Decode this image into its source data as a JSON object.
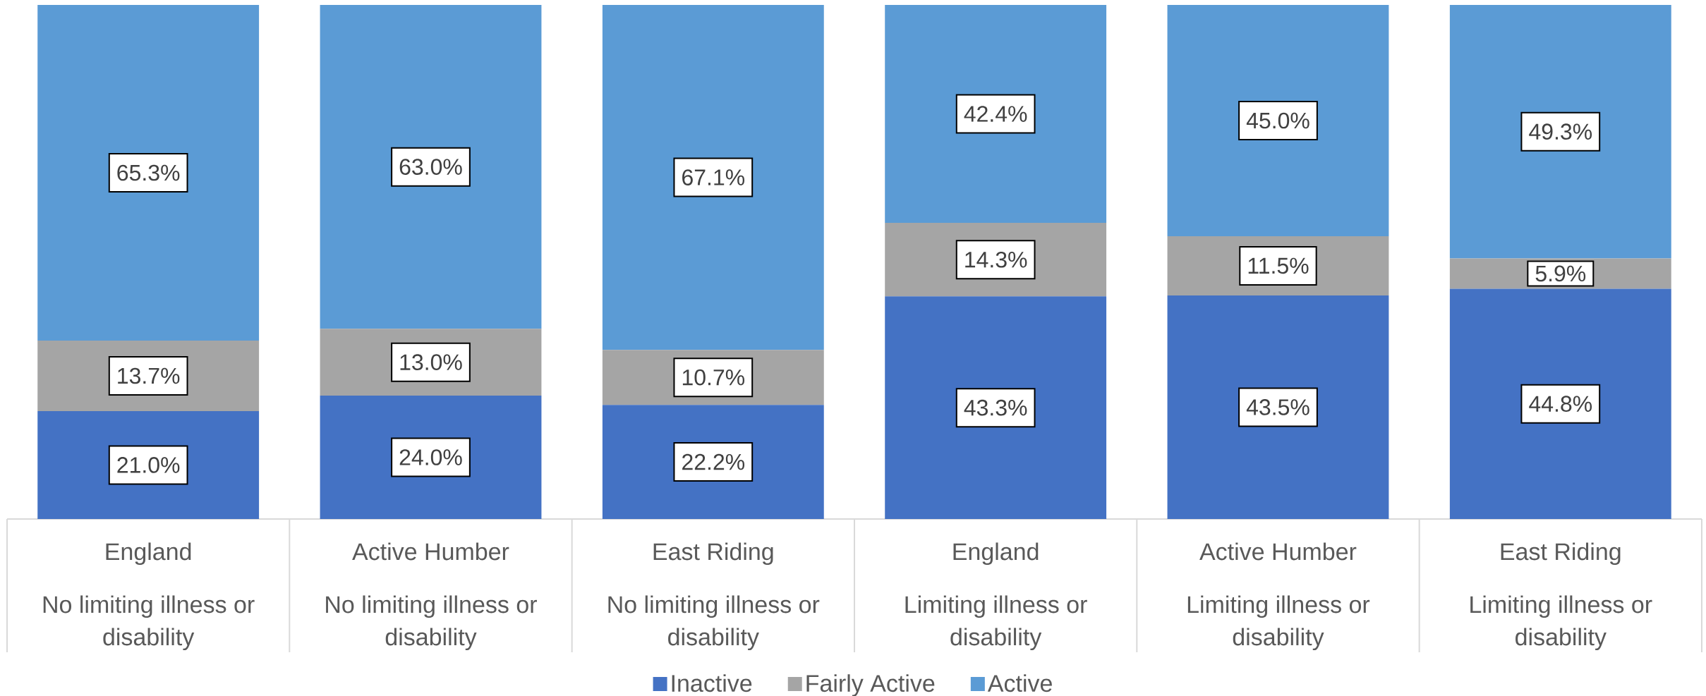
{
  "chart_data": {
    "type": "bar",
    "stacked": true,
    "categories": [
      "England",
      "Active Humber",
      "East Riding",
      "England",
      "Active Humber",
      "East Riding"
    ],
    "annotations": [
      "No limiting illness or disability",
      "No limiting illness or disability",
      "No limiting illness or disability",
      "Limiting illness or disability",
      "Limiting illness or disability",
      "Limiting illness or disability"
    ],
    "series": [
      {
        "name": "Inactive",
        "color": "#4472c4",
        "values": [
          21.0,
          24.0,
          22.2,
          43.3,
          43.5,
          44.8
        ],
        "value_labels": [
          "21.0%",
          "24.0%",
          "22.2%",
          "43.3%",
          "43.5%",
          "44.8%"
        ]
      },
      {
        "name": "Fairly Active",
        "color": "#a5a5a5",
        "values": [
          13.7,
          13.0,
          10.7,
          14.3,
          11.5,
          5.9
        ],
        "value_labels": [
          "13.7%",
          "13.0%",
          "10.7%",
          "14.3%",
          "11.5%",
          "5.9%"
        ]
      },
      {
        "name": "Active",
        "color": "#5b9bd5",
        "values": [
          65.3,
          63.0,
          67.1,
          42.4,
          45.0,
          49.3
        ],
        "value_labels": [
          "65.3%",
          "63.0%",
          "67.1%",
          "42.4%",
          "45.0%",
          "49.3%"
        ]
      }
    ],
    "ylim": [
      0,
      100
    ],
    "tick_labels": "x",
    "legend": "bottom"
  }
}
